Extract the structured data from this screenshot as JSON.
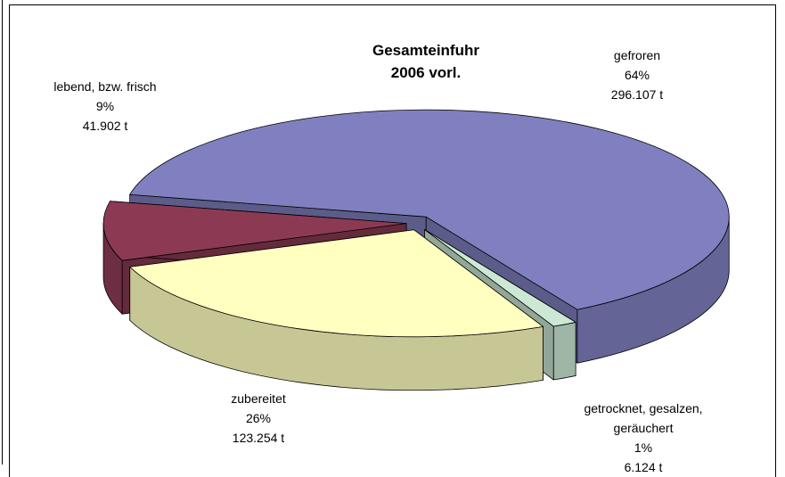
{
  "chart_data": {
    "type": "pie",
    "title": "Gesamteinfuhr\n2006 vorl.",
    "categories": [
      "gefroren",
      "getrocknet, gesalzen,\ngeräuchert",
      "zubereitet",
      "lebend, bzw. frisch"
    ],
    "values": [
      64,
      1,
      26,
      9
    ],
    "value_labels": [
      "64%",
      "1%",
      "26%",
      "9%"
    ],
    "amounts": [
      296107,
      6124,
      123254,
      41902
    ],
    "amount_labels": [
      "296.107 t",
      "6.124 t",
      "123.254 t",
      "41.902 t"
    ],
    "colors": [
      "#8080c0",
      "#cce8d4",
      "#ffffc0",
      "#8c3a54"
    ]
  }
}
